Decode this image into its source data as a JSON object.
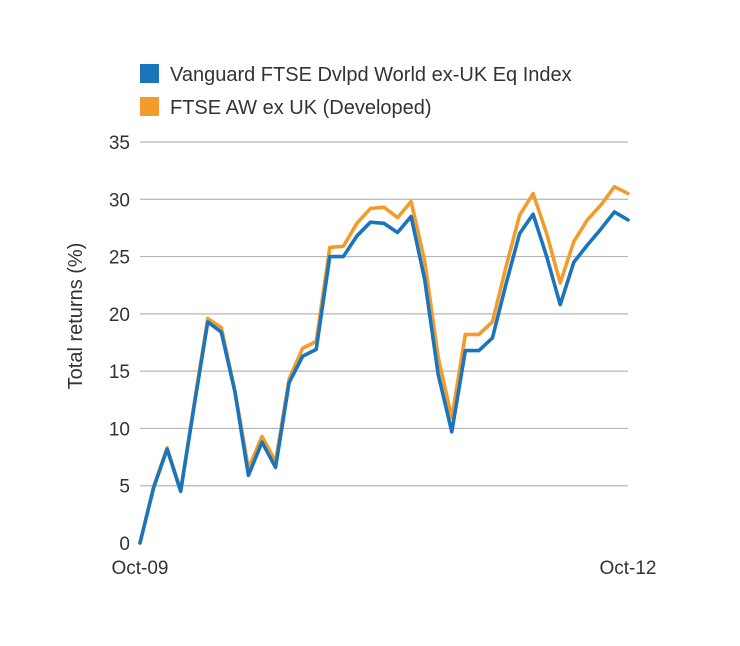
{
  "chart_data": {
    "type": "line",
    "ylabel": "Total returns (%)",
    "xlabel": "",
    "ylim": [
      0,
      35
    ],
    "yticks": [
      0,
      5,
      10,
      15,
      20,
      25,
      30,
      35
    ],
    "x_tick_labels": [
      {
        "label": "Oct-09",
        "month_index": 0
      },
      {
        "label": "Oct-12",
        "month_index": 36
      }
    ],
    "grid": true,
    "legend_position": "top",
    "series": [
      {
        "name": "Vanguard FTSE Dvlpd World ex-UK Eq Index",
        "color": "#1a75bc",
        "values": [
          0,
          4.8,
          8.2,
          4.5,
          12.0,
          19.3,
          18.4,
          13.2,
          5.9,
          8.8,
          6.6,
          14.0,
          16.3,
          16.9,
          25.0,
          25.0,
          26.8,
          28.0,
          27.9,
          27.1,
          28.5,
          23.0,
          14.7,
          9.7,
          16.8,
          16.8,
          17.9,
          22.6,
          27.0,
          28.7,
          25.0,
          20.8,
          24.5,
          26.0,
          27.4,
          28.9,
          28.2
        ]
      },
      {
        "name": "FTSE AW ex UK (Developed)",
        "color": "#f39c2b",
        "values": [
          0,
          4.9,
          8.3,
          4.6,
          12.2,
          19.6,
          18.8,
          13.3,
          6.5,
          9.3,
          7.1,
          14.3,
          17.0,
          17.6,
          25.8,
          25.9,
          27.9,
          29.2,
          29.3,
          28.4,
          29.8,
          24.6,
          16.2,
          10.9,
          18.2,
          18.2,
          19.3,
          24.1,
          28.6,
          30.5,
          27.0,
          22.7,
          26.3,
          28.2,
          29.5,
          31.1,
          30.5
        ]
      }
    ]
  }
}
